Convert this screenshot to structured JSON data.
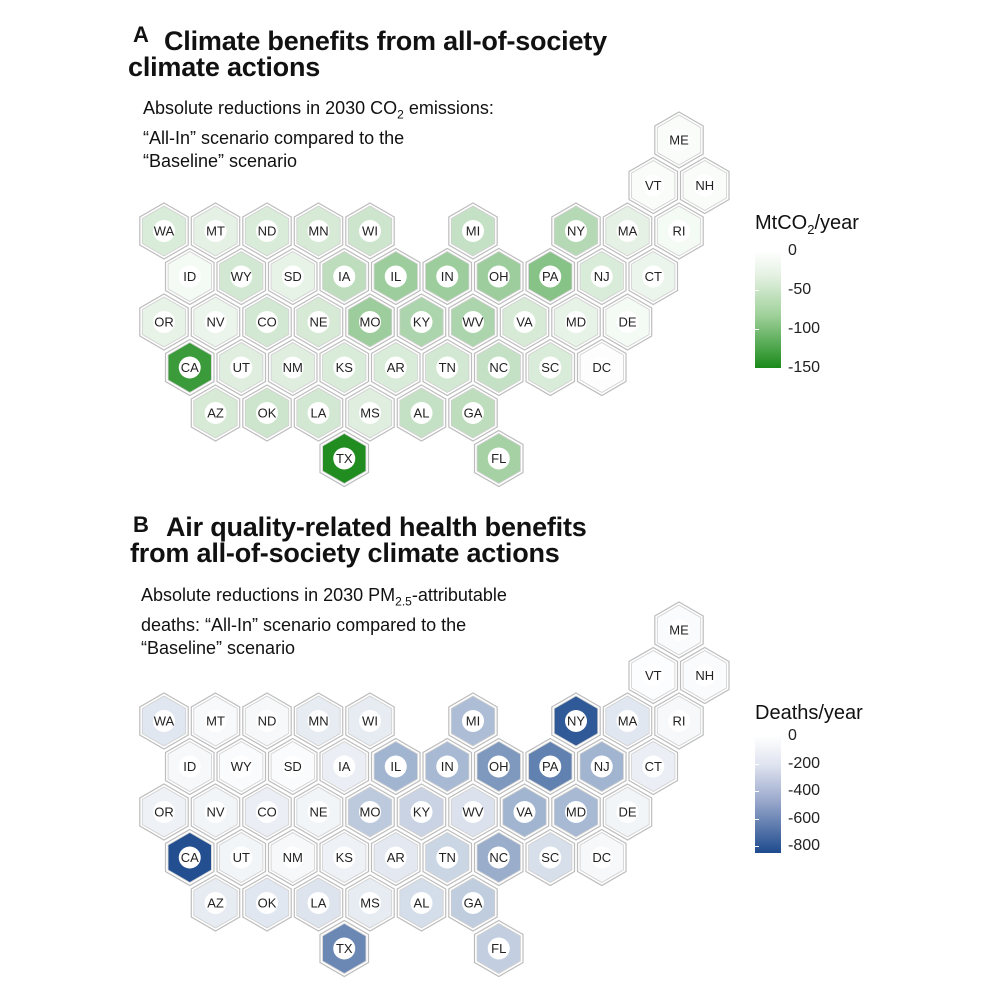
{
  "panelA": {
    "letter": "A",
    "title_line1": "Climate benefits from all-of-society",
    "title_line2": "climate actions",
    "subtitle_line1_pre": "Absolute reductions in 2030 CO",
    "subtitle_line1_sub": "2",
    "subtitle_line1_post": " emissions:",
    "subtitle_line2": "“All-In” scenario compared to the",
    "subtitle_line3": "“Baseline” scenario",
    "legend_title_pre": "MtCO",
    "legend_title_sub": "2",
    "legend_title_post": "/year",
    "legend_ticks": [
      "0",
      "-50",
      "-100",
      "-150"
    ],
    "legend_min": -150,
    "legend_max": 0,
    "color_low": "#1a8a1a",
    "color_high": "#ffffff"
  },
  "panelB": {
    "letter": "B",
    "title_line1": "Air quality-related health benefits",
    "title_line2": "from all-of-society climate actions",
    "subtitle_line1_pre": "Absolute reductions in 2030 PM",
    "subtitle_line1_sub": "2.5",
    "subtitle_line1_post": "-attributable",
    "subtitle_line2": "deaths: “All-In” scenario compared to the",
    "subtitle_line3": "“Baseline” scenario",
    "legend_title": "Deaths/year",
    "legend_ticks": [
      "0",
      "-200",
      "-400",
      "-600",
      "-800"
    ],
    "legend_min": -850,
    "legend_max": 0,
    "color_low": "#1e4b8e",
    "color_high": "#ffffff"
  },
  "states": [
    {
      "abbr": "ME",
      "row": 0,
      "col": 10
    },
    {
      "abbr": "VT",
      "row": 1,
      "col": 9
    },
    {
      "abbr": "NH",
      "row": 1,
      "col": 10
    },
    {
      "abbr": "WA",
      "row": 2,
      "col": 0
    },
    {
      "abbr": "MT",
      "row": 2,
      "col": 1
    },
    {
      "abbr": "ND",
      "row": 2,
      "col": 2
    },
    {
      "abbr": "MN",
      "row": 2,
      "col": 3
    },
    {
      "abbr": "WI",
      "row": 2,
      "col": 4
    },
    {
      "abbr": "MI",
      "row": 2,
      "col": 6
    },
    {
      "abbr": "NY",
      "row": 2,
      "col": 8
    },
    {
      "abbr": "MA",
      "row": 2,
      "col": 9
    },
    {
      "abbr": "RI",
      "row": 2,
      "col": 10
    },
    {
      "abbr": "ID",
      "row": 3,
      "col": 0
    },
    {
      "abbr": "WY",
      "row": 3,
      "col": 1
    },
    {
      "abbr": "SD",
      "row": 3,
      "col": 2
    },
    {
      "abbr": "IA",
      "row": 3,
      "col": 3
    },
    {
      "abbr": "IL",
      "row": 3,
      "col": 4
    },
    {
      "abbr": "IN",
      "row": 3,
      "col": 5
    },
    {
      "abbr": "OH",
      "row": 3,
      "col": 6
    },
    {
      "abbr": "PA",
      "row": 3,
      "col": 7
    },
    {
      "abbr": "NJ",
      "row": 3,
      "col": 8
    },
    {
      "abbr": "CT",
      "row": 3,
      "col": 9
    },
    {
      "abbr": "OR",
      "row": 4,
      "col": 0
    },
    {
      "abbr": "NV",
      "row": 4,
      "col": 1
    },
    {
      "abbr": "CO",
      "row": 4,
      "col": 2
    },
    {
      "abbr": "NE",
      "row": 4,
      "col": 3
    },
    {
      "abbr": "MO",
      "row": 4,
      "col": 4
    },
    {
      "abbr": "KY",
      "row": 4,
      "col": 5
    },
    {
      "abbr": "WV",
      "row": 4,
      "col": 6
    },
    {
      "abbr": "VA",
      "row": 4,
      "col": 7
    },
    {
      "abbr": "MD",
      "row": 4,
      "col": 8
    },
    {
      "abbr": "DE",
      "row": 4,
      "col": 9
    },
    {
      "abbr": "CA",
      "row": 5,
      "col": 0
    },
    {
      "abbr": "UT",
      "row": 5,
      "col": 1
    },
    {
      "abbr": "NM",
      "row": 5,
      "col": 2
    },
    {
      "abbr": "KS",
      "row": 5,
      "col": 3
    },
    {
      "abbr": "AR",
      "row": 5,
      "col": 4
    },
    {
      "abbr": "TN",
      "row": 5,
      "col": 5
    },
    {
      "abbr": "NC",
      "row": 5,
      "col": 6
    },
    {
      "abbr": "SC",
      "row": 5,
      "col": 7
    },
    {
      "abbr": "DC",
      "row": 5,
      "col": 8
    },
    {
      "abbr": "AZ",
      "row": 6,
      "col": 1
    },
    {
      "abbr": "OK",
      "row": 6,
      "col": 2
    },
    {
      "abbr": "LA",
      "row": 6,
      "col": 3
    },
    {
      "abbr": "MS",
      "row": 6,
      "col": 4
    },
    {
      "abbr": "AL",
      "row": 6,
      "col": 5
    },
    {
      "abbr": "GA",
      "row": 6,
      "col": 6
    },
    {
      "abbr": "TX",
      "row": 7,
      "col": 3
    },
    {
      "abbr": "FL",
      "row": 7,
      "col": 6
    }
  ],
  "co2_reduction": {
    "ME": -2,
    "VT": -2,
    "NH": -2,
    "WA": -18,
    "MT": -12,
    "ND": -18,
    "MN": -20,
    "WI": -25,
    "MI": -30,
    "NY": -40,
    "MA": -12,
    "RI": -4,
    "ID": -4,
    "WY": -22,
    "SD": -10,
    "IA": -35,
    "IL": -55,
    "IN": -55,
    "OH": -55,
    "PA": -70,
    "NJ": -18,
    "CT": -8,
    "OR": -10,
    "NV": -8,
    "CO": -22,
    "NE": -20,
    "MO": -55,
    "KY": -45,
    "WV": -45,
    "VA": -20,
    "MD": -10,
    "DE": -4,
    "CA": -125,
    "UT": -15,
    "NM": -15,
    "KS": -18,
    "AR": -18,
    "TN": -22,
    "NC": -30,
    "SC": -18,
    "DC": -1,
    "AZ": -20,
    "OK": -25,
    "LA": -22,
    "MS": -15,
    "AL": -30,
    "GA": -35,
    "TX": -145,
    "FL": -50
  },
  "pm25_deaths_reduction": {
    "ME": -10,
    "VT": -5,
    "NH": -10,
    "WA": -80,
    "MT": -15,
    "ND": -20,
    "MN": -60,
    "WI": -60,
    "MI": -260,
    "NY": -770,
    "MA": -80,
    "RI": -20,
    "ID": -20,
    "WY": -10,
    "SD": -10,
    "IA": -50,
    "IL": -300,
    "IN": -280,
    "OH": -440,
    "PA": -560,
    "NJ": -300,
    "CT": -50,
    "OR": -40,
    "NV": -30,
    "CO": -50,
    "NE": -30,
    "MO": -200,
    "KY": -160,
    "WV": -100,
    "VA": -300,
    "MD": -280,
    "DE": -30,
    "CA": -830,
    "UT": -30,
    "NM": -20,
    "KS": -40,
    "AR": -70,
    "TN": -150,
    "NC": -330,
    "SC": -110,
    "DC": -20,
    "AZ": -60,
    "OK": -80,
    "LA": -90,
    "MS": -60,
    "AL": -120,
    "GA": -190,
    "TX": -520,
    "FL": -180
  }
}
